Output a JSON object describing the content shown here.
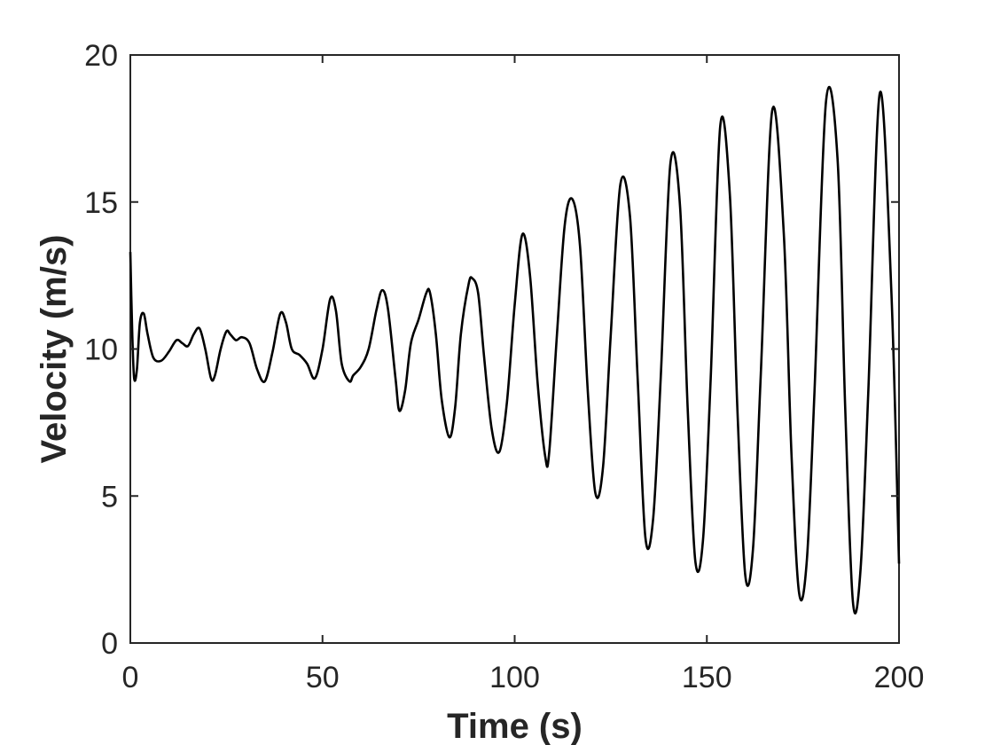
{
  "chart_data": {
    "type": "line",
    "title": "",
    "xlabel": "Time (s)",
    "ylabel": "Velocity (m/s)",
    "xlim": [
      0,
      200
    ],
    "ylim": [
      0,
      20
    ],
    "xticks": [
      0,
      50,
      100,
      150,
      200
    ],
    "yticks": [
      0,
      5,
      10,
      15,
      20
    ],
    "grid": false,
    "box": true,
    "series": [
      {
        "color": "#000000",
        "x": [
          0,
          0.5,
          1,
          1.7,
          2.5,
          3.5,
          4.5,
          6,
          8,
          10,
          12,
          13.5,
          15,
          16.5,
          18,
          19.5,
          21,
          22,
          23.5,
          25,
          26,
          27.5,
          29,
          31,
          33,
          35,
          37,
          39,
          40.5,
          42,
          44,
          46,
          48,
          50,
          52,
          53.5,
          55,
          57,
          58,
          60,
          62,
          64,
          65.5,
          67,
          69,
          70,
          71.5,
          73,
          75,
          77,
          78,
          79.5,
          81,
          83,
          84.5,
          86,
          88,
          89,
          90.5,
          92,
          94,
          96,
          98,
          100,
          102,
          104,
          106,
          108,
          109,
          111,
          113,
          115,
          117,
          119,
          121,
          123,
          125,
          127.5,
          130,
          132,
          134,
          136,
          138,
          140.5,
          143,
          145,
          147,
          149,
          151,
          153.5,
          156,
          158,
          160,
          162,
          164,
          167,
          170,
          172,
          174,
          176,
          178,
          181,
          184,
          186,
          188,
          190,
          192,
          195,
          198,
          200
        ],
        "y": [
          13.3,
          10.5,
          9.0,
          9.3,
          10.9,
          11.2,
          10.5,
          9.7,
          9.6,
          9.9,
          10.3,
          10.2,
          10.1,
          10.5,
          10.7,
          10.0,
          9.0,
          9.1,
          10.0,
          10.6,
          10.5,
          10.3,
          10.4,
          10.2,
          9.3,
          8.9,
          9.9,
          11.2,
          10.9,
          10.0,
          9.8,
          9.5,
          9.0,
          10.0,
          11.7,
          11.3,
          9.5,
          8.9,
          9.1,
          9.4,
          10.0,
          11.3,
          12.0,
          11.4,
          9.0,
          7.9,
          8.6,
          10.2,
          11.0,
          11.9,
          11.9,
          10.5,
          8.3,
          7.0,
          8.0,
          10.5,
          12.2,
          12.4,
          11.9,
          9.8,
          7.3,
          6.5,
          8.2,
          11.5,
          13.9,
          12.5,
          8.8,
          6.3,
          6.5,
          10.5,
          14.2,
          15.1,
          13.5,
          8.6,
          5.1,
          6.0,
          10.5,
          15.6,
          14.5,
          9.0,
          3.6,
          4.2,
          9.0,
          16.3,
          14.9,
          8.0,
          2.8,
          3.5,
          9.0,
          17.6,
          15.2,
          7.8,
          2.3,
          3.2,
          9.0,
          18.1,
          14.0,
          6.5,
          1.7,
          2.8,
          8.5,
          18.4,
          16.5,
          8.0,
          1.4,
          2.5,
          8.5,
          18.7,
          12.0,
          2.7
        ]
      }
    ]
  }
}
